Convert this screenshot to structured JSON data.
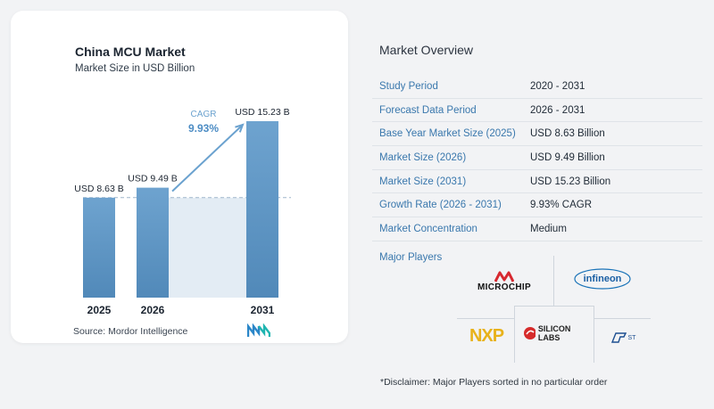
{
  "chart": {
    "title": "China MCU Market",
    "subtitle": "Market Size in USD Billion",
    "source": "Source:  Mordor Intelligence",
    "cagr_label": "CAGR",
    "cagr_value": "9.93%"
  },
  "chart_data": {
    "type": "bar",
    "categories": [
      "2025",
      "2026",
      "2031"
    ],
    "values": [
      8.63,
      9.49,
      15.23
    ],
    "value_labels": [
      "USD 8.63 B",
      "USD 9.49 B",
      "USD 15.23 B"
    ],
    "title": "China MCU Market",
    "subtitle": "Market Size in USD Billion",
    "xlabel": "",
    "ylabel": "",
    "ylim": [
      0,
      16
    ],
    "grid": false,
    "bar_color": "#5f97c5",
    "annotations": [
      "CAGR",
      "9.93%"
    ]
  },
  "overview": {
    "title": "Market Overview",
    "rows": [
      {
        "label": "Study Period",
        "value": "2020 - 2031"
      },
      {
        "label": "Forecast Data Period",
        "value": "2026 - 2031"
      },
      {
        "label": "Base Year Market Size (2025)",
        "value": "USD 8.63 Billion"
      },
      {
        "label": "Market Size (2026)",
        "value": "USD 9.49 Billion"
      },
      {
        "label": "Market Size (2031)",
        "value": "USD 15.23 Billion"
      },
      {
        "label": "Growth Rate (2026 - 2031)",
        "value": "9.93% CAGR"
      },
      {
        "label": "Market Concentration",
        "value": "Medium"
      }
    ],
    "players_label": "Major Players",
    "players": [
      "MICROCHIP",
      "infineon",
      "NXP",
      "SILICON LABS",
      "ST"
    ],
    "disclaimer": "*Disclaimer: Major Players sorted in no particular order"
  },
  "colors": {
    "accent": "#3a78ad",
    "bar": "#5f97c5",
    "bar_light": "#e3ecf4"
  }
}
